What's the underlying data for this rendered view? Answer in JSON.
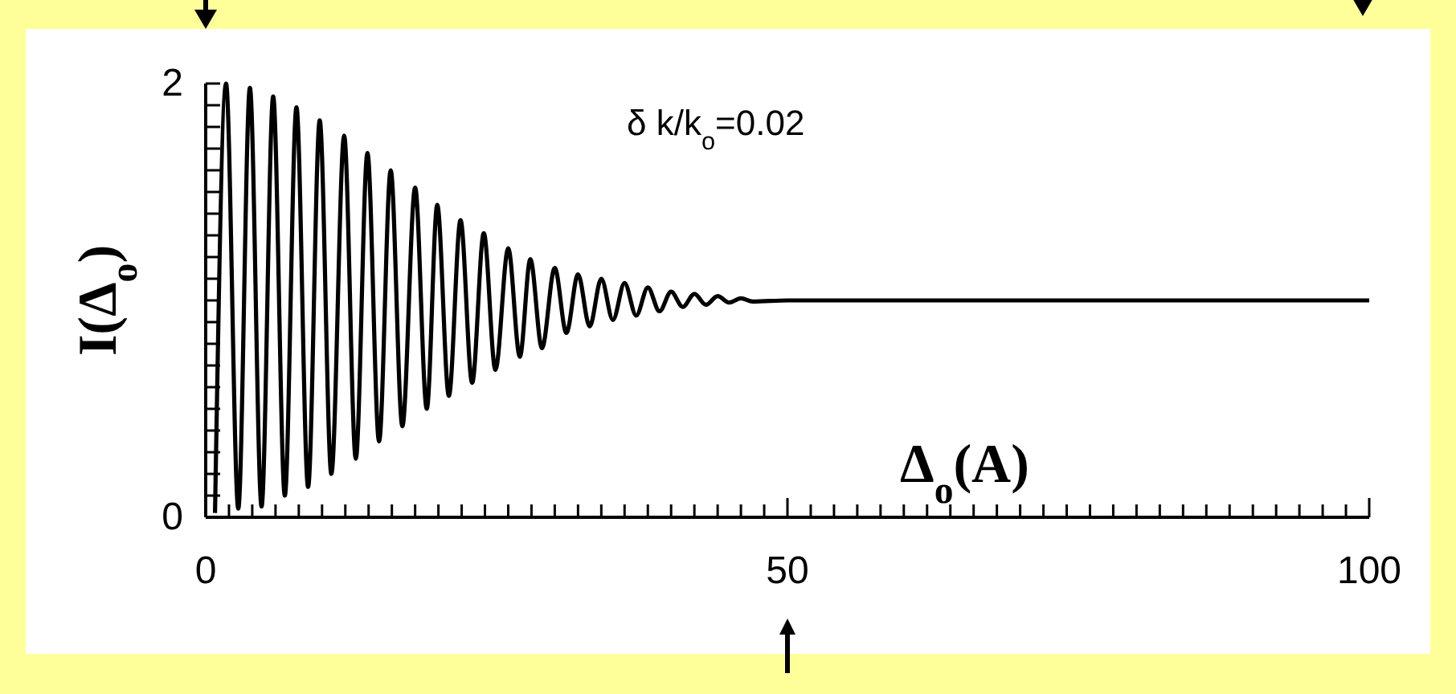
{
  "chart_data": {
    "type": "line",
    "xlabel": "Δ$_{o}$(A)",
    "ylabel": "I(Δ$_{o}$)",
    "annotations": [
      "δ k/k$_{o}$=0.02"
    ],
    "x": [
      0.8,
      1.75,
      2.8,
      3.8,
      4.8,
      5.8,
      6.8,
      7.8,
      8.8,
      9.8,
      10.8,
      11.9,
      12.9,
      13.9,
      14.9,
      15.9,
      16.9,
      18,
      19,
      19.9,
      20.9,
      21.9,
      22.9,
      23.9,
      24.9,
      26,
      27,
      27.9,
      28.9,
      30,
      31,
      32,
      33,
      34,
      35,
      36,
      37,
      38,
      39,
      40,
      41,
      42,
      43,
      44,
      45,
      46,
      47,
      50,
      100
    ],
    "values": [
      0.02,
      2.0,
      0.04,
      1.98,
      0.05,
      1.94,
      0.1,
      1.89,
      0.14,
      1.83,
      0.2,
      1.76,
      0.27,
      1.68,
      0.35,
      1.6,
      0.42,
      1.52,
      0.5,
      1.44,
      0.56,
      1.37,
      0.62,
      1.31,
      0.68,
      1.24,
      0.74,
      1.19,
      0.78,
      1.15,
      0.85,
      1.12,
      0.88,
      1.1,
      0.91,
      1.08,
      0.93,
      1.06,
      0.95,
      1.04,
      0.97,
      1.03,
      0.98,
      1.02,
      0.99,
      1.01,
      0.995,
      1,
      1
    ],
    "color": "#000000",
    "line_style": "solid",
    "marker": "none",
    "grid": false,
    "xlim": [
      0,
      100
    ],
    "ylim": [
      0,
      2
    ],
    "xticks": [
      0,
      {
        "value": 2,
        "label": null
      },
      {
        "value": 4,
        "label": null
      },
      {
        "value": 6,
        "label": null
      },
      {
        "value": 8,
        "label": null
      },
      {
        "value": 10,
        "label": null
      },
      {
        "value": 12,
        "label": null
      },
      {
        "value": 14,
        "label": null
      },
      {
        "value": 16,
        "label": null
      },
      {
        "value": 18,
        "label": null
      },
      {
        "value": 20,
        "label": null
      },
      {
        "value": 22,
        "label": null
      },
      {
        "value": 24,
        "label": null
      },
      {
        "value": 26,
        "label": null
      },
      {
        "value": 28,
        "label": null
      },
      {
        "value": 30,
        "label": null
      },
      {
        "value": 32,
        "label": null
      },
      {
        "value": 34,
        "label": null
      },
      {
        "value": 36,
        "label": null
      },
      {
        "value": 38,
        "label": null
      },
      {
        "value": 40,
        "label": null
      },
      {
        "value": 42,
        "label": null
      },
      {
        "value": 44,
        "label": null
      },
      {
        "value": 46,
        "label": null
      },
      {
        "value": 48,
        "label": null
      },
      50,
      {
        "value": 52,
        "label": null
      },
      {
        "value": 54,
        "label": null
      },
      {
        "value": 56,
        "label": null
      },
      {
        "value": 58,
        "label": null
      },
      {
        "value": 60,
        "label": null
      },
      {
        "value": 62,
        "label": null
      },
      {
        "value": 64,
        "label": null
      },
      {
        "value": 66,
        "label": null
      },
      {
        "value": 68,
        "label": null
      },
      {
        "value": 70,
        "label": null
      },
      {
        "value": 72,
        "label": null
      },
      {
        "value": 74,
        "label": null
      },
      {
        "value": 76,
        "label": null
      },
      {
        "value": 78,
        "label": null
      },
      {
        "value": 80,
        "label": null
      },
      {
        "value": 82,
        "label": null
      },
      {
        "value": 84,
        "label": null
      },
      {
        "value": 86,
        "label": null
      },
      {
        "value": 88,
        "label": null
      },
      {
        "value": 90,
        "label": null
      },
      {
        "value": 92,
        "label": null
      },
      {
        "value": 94,
        "label": null
      },
      {
        "value": 96,
        "label": null
      },
      {
        "value": 98,
        "label": null
      },
      100
    ],
    "yticks": [
      0,
      {
        "value": 0.1,
        "label": null
      },
      {
        "value": 0.2,
        "label": null
      },
      {
        "value": 0.3,
        "label": null
      },
      {
        "value": 0.4,
        "label": null
      },
      {
        "value": 0.5,
        "label": null
      },
      {
        "value": 0.6,
        "label": null
      },
      {
        "value": 0.7,
        "label": null
      },
      {
        "value": 0.8,
        "label": null
      },
      {
        "value": 0.9,
        "label": null
      },
      {
        "value": 1,
        "label": null
      },
      {
        "value": 1.1,
        "label": null
      },
      {
        "value": 1.2,
        "label": null
      },
      {
        "value": 1.3,
        "label": null
      },
      {
        "value": 1.4,
        "label": null
      },
      {
        "value": 1.5,
        "label": null
      },
      {
        "value": 1.6,
        "label": null
      },
      {
        "value": 1.7,
        "label": null
      },
      {
        "value": 1.8,
        "label": null
      },
      {
        "value": 1.9,
        "label": null
      },
      2
    ]
  }
}
